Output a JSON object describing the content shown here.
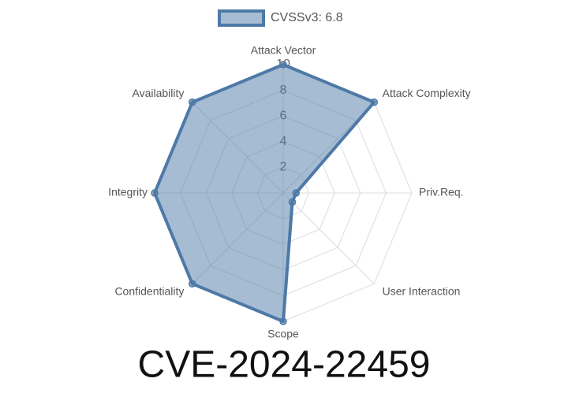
{
  "chart_data": {
    "type": "radar",
    "title": "CVE-2024-22459",
    "categories": [
      "Attack Vector",
      "Attack Complexity",
      "Priv.Req.",
      "User Interaction",
      "Scope",
      "Confidentiality",
      "Integrity",
      "Availability"
    ],
    "series": [
      {
        "name": "CVSSv3: 6.8",
        "color": "#4e79a7",
        "values": [
          10,
          10,
          1,
          1,
          10,
          10,
          10,
          10
        ]
      }
    ],
    "ylim": [
      0,
      10
    ],
    "yticks": [
      2,
      4,
      6,
      8,
      10
    ],
    "grid": true,
    "legend": "top"
  }
}
